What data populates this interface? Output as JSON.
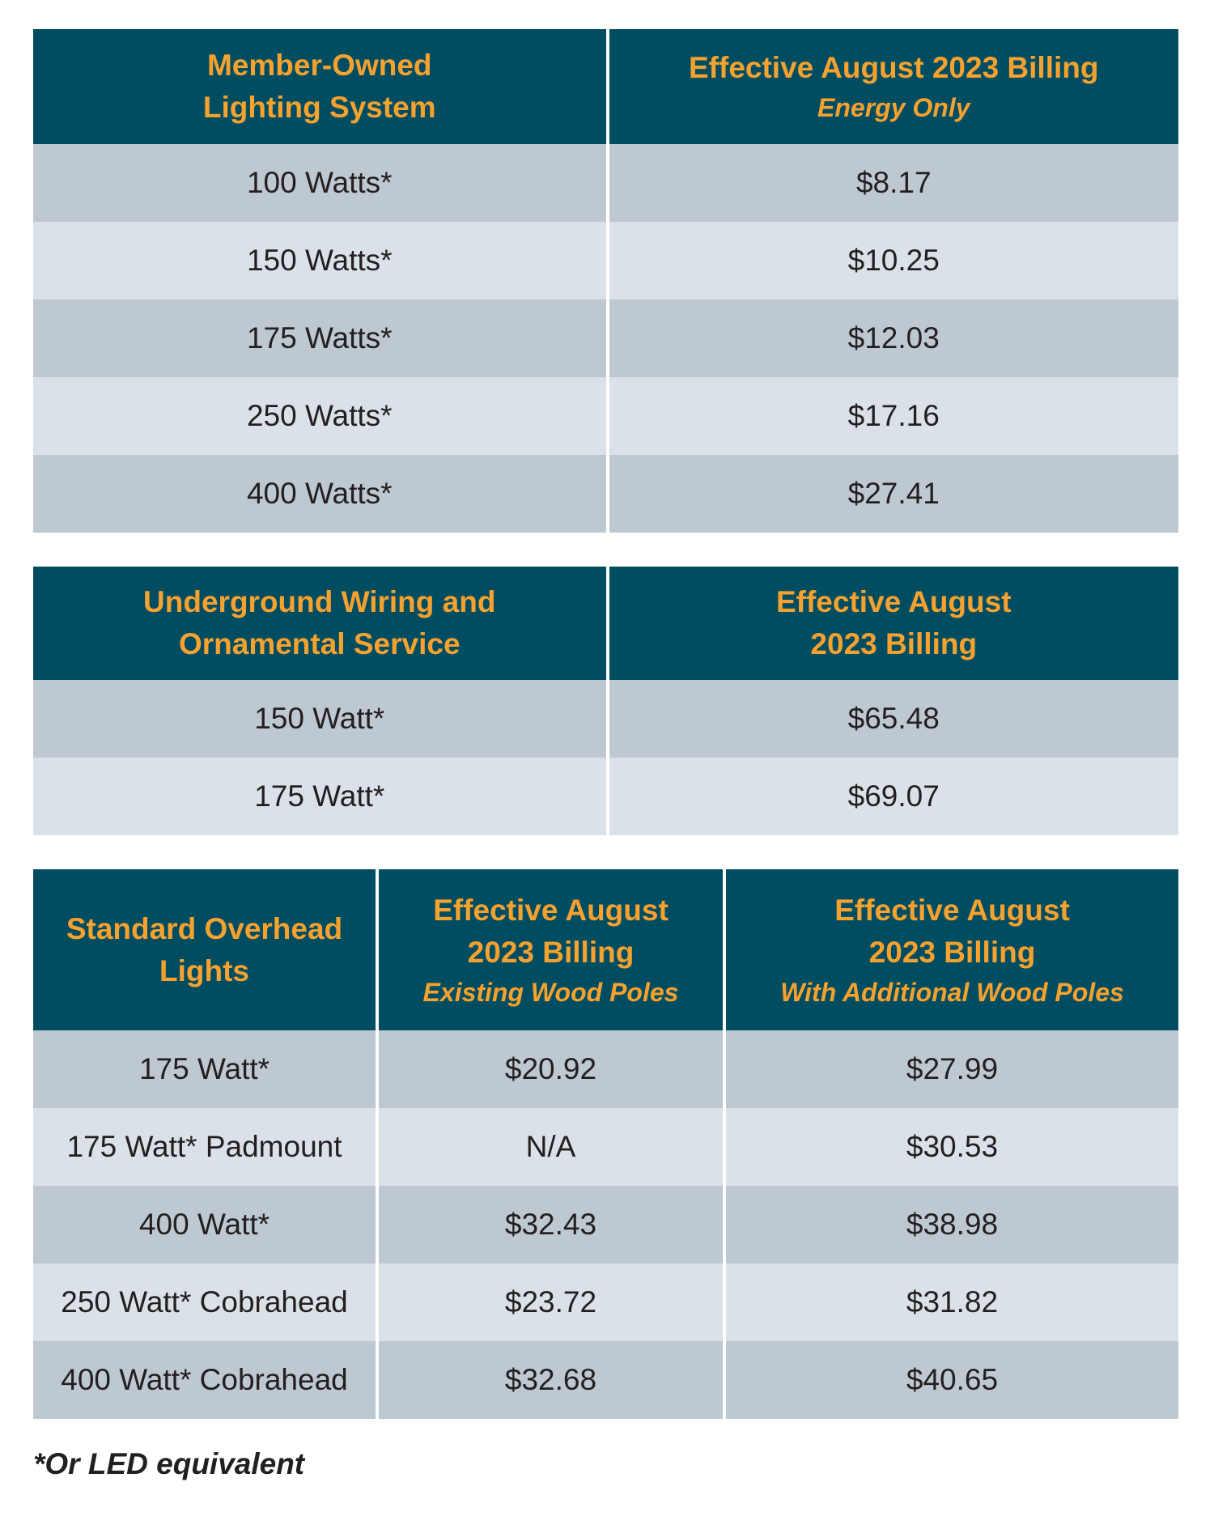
{
  "table1": {
    "headers": [
      "Member-Owned Lighting System",
      "Effective August 2023 Billing"
    ],
    "header_line1": [
      "Member-Owned",
      "Lighting System"
    ],
    "header2_sub": "Energy Only",
    "rows": [
      [
        "100 Watts*",
        "$8.17"
      ],
      [
        "150 Watts*",
        "$10.25"
      ],
      [
        "175 Watts*",
        "$12.03"
      ],
      [
        "250 Watts*",
        "$17.16"
      ],
      [
        "400 Watts*",
        "$27.41"
      ]
    ]
  },
  "table2": {
    "header1": [
      "Underground Wiring and",
      "Ornamental Service"
    ],
    "header2": [
      "Effective August",
      "2023 Billing"
    ],
    "rows": [
      [
        "150 Watt*",
        "$65.48"
      ],
      [
        "175 Watt*",
        "$69.07"
      ]
    ]
  },
  "table3": {
    "header1": [
      "Standard Overhead",
      "Lights"
    ],
    "header2": [
      "Effective August",
      "2023 Billing",
      "Existing Wood Poles"
    ],
    "header3": [
      "Effective August",
      "2023 Billing",
      "With Additional Wood Poles"
    ],
    "rows": [
      [
        "175 Watt*",
        "$20.92",
        "$27.99"
      ],
      [
        "175 Watt* Padmount",
        "N/A",
        "$30.53"
      ],
      [
        "400 Watt*",
        "$32.43",
        "$38.98"
      ],
      [
        "250 Watt* Cobrahead",
        "$23.72",
        "$31.82"
      ],
      [
        "400 Watt* Cobrahead",
        "$32.68",
        "$40.65"
      ]
    ]
  },
  "footnote": "*Or LED equivalent",
  "colors": {
    "header_bg": "#004d61",
    "header_text": "#f7a12e",
    "row_dark": "#bec8d1",
    "row_light": "#dbe1e9"
  }
}
